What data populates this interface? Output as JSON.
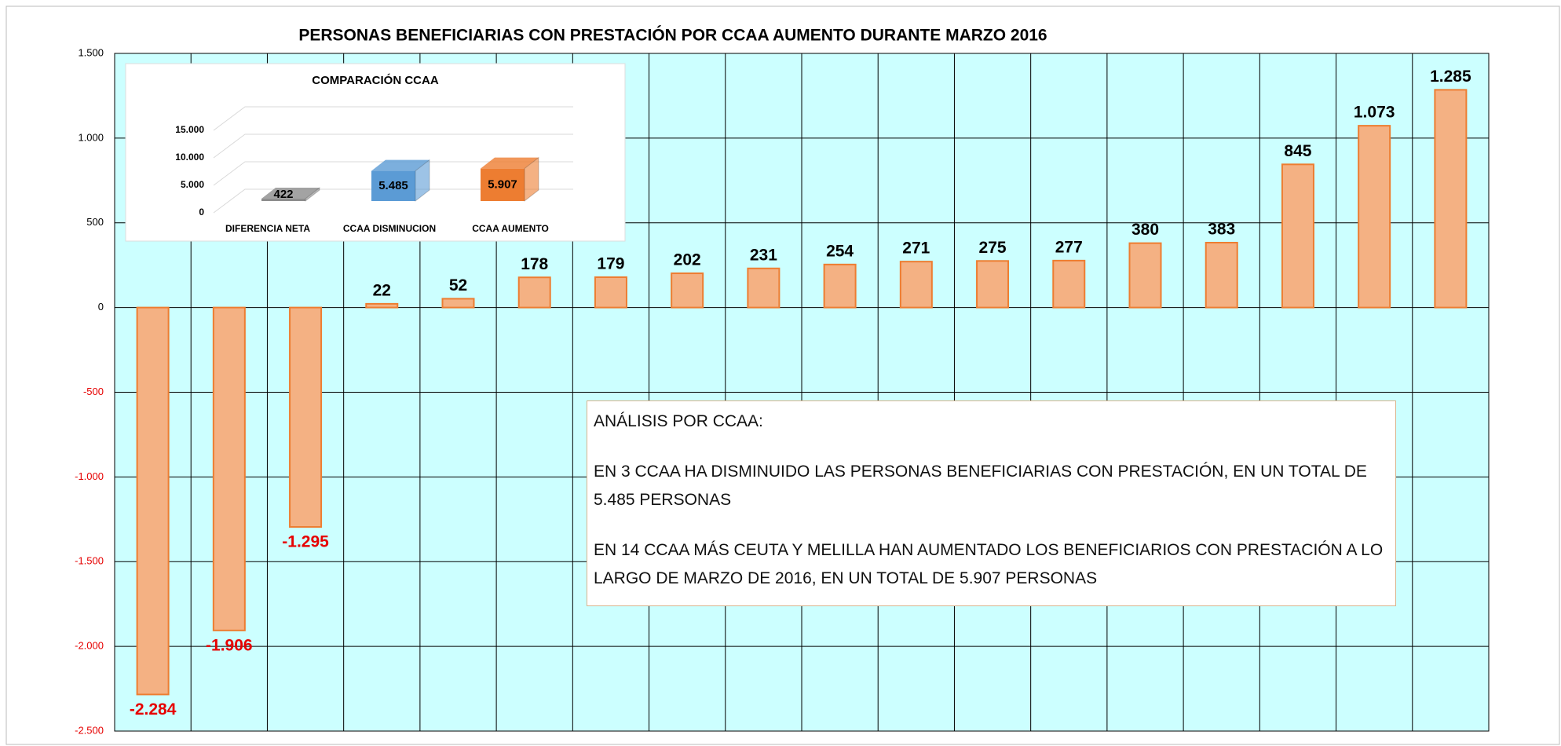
{
  "chart_data": [
    {
      "type": "bar",
      "title": "PERSONAS BENEFICIARIAS CON PRESTACIÓN POR CCAA AUMENTO DURANTE MARZO 2016",
      "categories": [
        null,
        null,
        null,
        null,
        null,
        null,
        null,
        null,
        null,
        null,
        null,
        null,
        null,
        null,
        null,
        null,
        null,
        null
      ],
      "values": [
        -2284,
        -1906,
        -1295,
        22,
        52,
        178,
        179,
        202,
        231,
        254,
        271,
        275,
        277,
        380,
        383,
        845,
        1073,
        1285
      ],
      "value_labels": [
        "-2.284",
        "-1.906",
        "-1.295",
        "22",
        "52",
        "178",
        "179",
        "202",
        "231",
        "254",
        "271",
        "275",
        "277",
        "380",
        "383",
        "845",
        "1.073",
        "1.285"
      ],
      "color": "#f4b183",
      "edgecolor": "#ed7d31",
      "negative_color": "#e60000",
      "background": "#ccffff",
      "ylim": [
        -2500,
        1500
      ],
      "yticks": [
        {
          "value": -2500,
          "label": "-2.500"
        },
        {
          "value": -2000,
          "label": "-2.000"
        },
        {
          "value": -1500,
          "label": "-1.500"
        },
        {
          "value": -1000,
          "label": "-1.000"
        },
        -500,
        0,
        500,
        {
          "value": 1000,
          "label": "1.000"
        },
        {
          "value": 1500,
          "label": "1.500"
        }
      ],
      "grid": true,
      "annotation": {
        "title": "ANÁLISIS POR CCAA:",
        "paragraphs": [
          "EN 3 CCAA HA DISMINUIDO LAS PERSONAS BENEFICIARIAS CON PRESTACIÓN, EN UN TOTAL DE 5.485 PERSONAS",
          "EN 14 CCAA MÁS CEUTA Y MELILLA HAN AUMENTADO LOS BENEFICIARIOS CON PRESTACIÓN A LO LARGO DE MARZO DE 2016, EN UN TOTAL DE  5.907 PERSONAS"
        ]
      }
    },
    {
      "type": "bar3d",
      "title": "COMPARACIÓN CCAA",
      "categories": [
        "DIFERENCIA NETA",
        "CCAA DISMINUCION",
        "CCAA AUMENTO"
      ],
      "values": [
        422,
        5485,
        5907
      ],
      "value_labels": [
        "422",
        "5.485",
        "5.907"
      ],
      "colors": [
        "#8c8c8c",
        "#5b9bd5",
        "#ed7d31"
      ],
      "ylim": [
        0,
        15000
      ],
      "yticks": [
        0,
        {
          "value": 5000,
          "label": "5.000"
        },
        {
          "value": 10000,
          "label": "10.000"
        },
        {
          "value": 15000,
          "label": "15.000"
        }
      ]
    }
  ]
}
